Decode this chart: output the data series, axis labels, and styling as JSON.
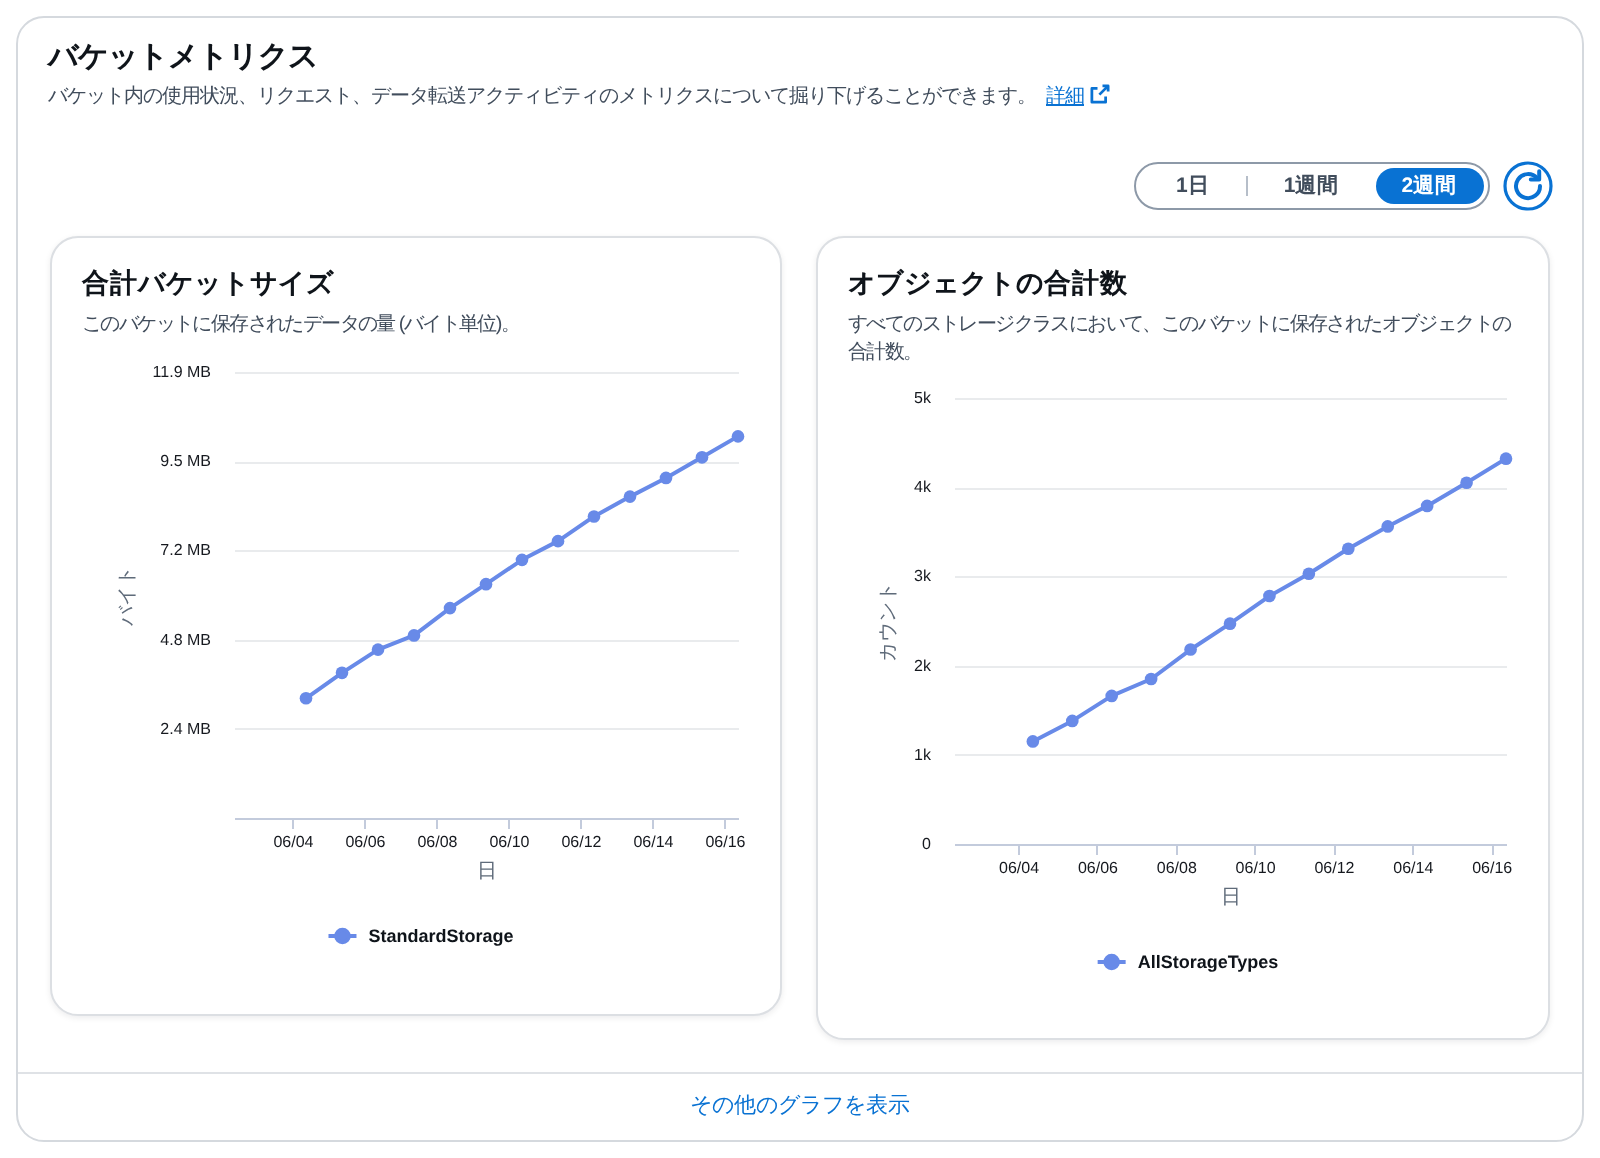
{
  "chart_data": [
    {
      "type": "other",
      "title": "バケットメトリクス",
      "subtitle": "バケット内の使用状況、リクエスト、データ転送アクティビティのメトリクスについて掘り下げることができます。",
      "annotations": [
        "詳細",
        "1日",
        "1週間",
        "2週間",
        "その他のグラフを表示"
      ]
    },
    {
      "type": "line",
      "title": "合計バケットサイズ",
      "subtitle": "このバケットに保存されたデータの量 (バイト単位)。",
      "xlabel": "日",
      "ylabel": "バイト",
      "x": [
        "--06-04T09:00",
        "--06-05T09:00",
        "--06-06T09:00",
        "--06-07T09:00",
        "--06-08T09:00",
        "--06-09T09:00",
        "--06-10T09:00",
        "--06-11T09:00",
        "--06-12T09:00",
        "--06-13T09:00",
        "--06-14T09:00",
        "--06-15T09:00",
        "--06-16T09:00"
      ],
      "xlim": [
        "--06-02T09:00",
        "--06-16T09:00"
      ],
      "xticks": [
        {
          "value": "--06-04",
          "label": "06/04"
        },
        {
          "value": "--06-06",
          "label": "06/06"
        },
        {
          "value": "--06-08",
          "label": "06/08"
        },
        {
          "value": "--06-10",
          "label": "06/10"
        },
        {
          "value": "--06-12",
          "label": "06/12"
        },
        {
          "value": "--06-14",
          "label": "06/14"
        },
        {
          "value": "--06-16",
          "label": "06/16"
        }
      ],
      "ylim": [
        0,
        11.921
      ],
      "yticks": [
        {
          "value": 2.384,
          "label": "2.4 MB"
        },
        {
          "value": 4.768,
          "label": "4.8 MB"
        },
        {
          "value": 7.153,
          "label": "7.2 MB"
        },
        {
          "value": 9.537,
          "label": "9.5 MB"
        },
        {
          "value": 11.921,
          "label": "11.9 MB"
        }
      ],
      "series": [
        {
          "name": "StandardStorage",
          "color": "#688ae8",
          "values": [
            3.2,
            3.88,
            4.5,
            4.88,
            5.61,
            6.25,
            6.9,
            7.4,
            8.06,
            8.59,
            9.09,
            9.64,
            10.2
          ]
        }
      ],
      "legend": "bottom",
      "grid": "y",
      "marker": "circle"
    },
    {
      "type": "line",
      "title": "オブジェクトの合計数",
      "subtitle": "すべてのストレージクラスにおいて、このバケットに保存されたオブジェクトの合計数。",
      "xlabel": "日",
      "ylabel": "カウント",
      "x": [
        "--06-04T09:00",
        "--06-05T09:00",
        "--06-06T09:00",
        "--06-07T09:00",
        "--06-08T09:00",
        "--06-09T09:00",
        "--06-10T09:00",
        "--06-11T09:00",
        "--06-12T09:00",
        "--06-13T09:00",
        "--06-14T09:00",
        "--06-15T09:00",
        "--06-16T09:00"
      ],
      "xlim": [
        "--06-02T09:00",
        "--06-16T09:00"
      ],
      "xticks": [
        {
          "value": "--06-04",
          "label": "06/04"
        },
        {
          "value": "--06-06",
          "label": "06/06"
        },
        {
          "value": "--06-08",
          "label": "06/08"
        },
        {
          "value": "--06-10",
          "label": "06/10"
        },
        {
          "value": "--06-12",
          "label": "06/12"
        },
        {
          "value": "--06-14",
          "label": "06/14"
        },
        {
          "value": "--06-16",
          "label": "06/16"
        }
      ],
      "ylim": [
        0,
        5000
      ],
      "yticks": [
        0,
        {
          "value": 1000,
          "label": "1k"
        },
        {
          "value": 2000,
          "label": "2k"
        },
        {
          "value": 3000,
          "label": "3k"
        },
        {
          "value": 4000,
          "label": "4k"
        },
        {
          "value": 5000,
          "label": "5k"
        }
      ],
      "series": [
        {
          "name": "AllStorageTypes",
          "color": "#688ae8",
          "values": [
            1150,
            1380,
            1660,
            1850,
            2180,
            2470,
            2780,
            3030,
            3310,
            3560,
            3790,
            4050,
            4320
          ]
        }
      ],
      "legend": "bottom",
      "grid": "y",
      "marker": "circle"
    }
  ]
}
